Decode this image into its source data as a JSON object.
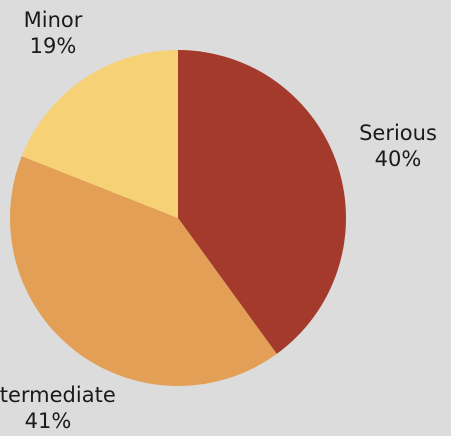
{
  "chart_data": {
    "type": "pie",
    "slices": [
      {
        "label": "Serious",
        "value": 40,
        "value_label": "40%",
        "color": "#a33a2c"
      },
      {
        "label": "Intermediate",
        "value": 41,
        "value_label": "41%",
        "color": "#e29f55"
      },
      {
        "label": "Minor",
        "value": 19,
        "value_label": "19%",
        "color": "#f7d175"
      }
    ],
    "start_angle": "12 o'clock",
    "direction": "clockwise",
    "legend": "none",
    "background": "#dcdcdc"
  }
}
